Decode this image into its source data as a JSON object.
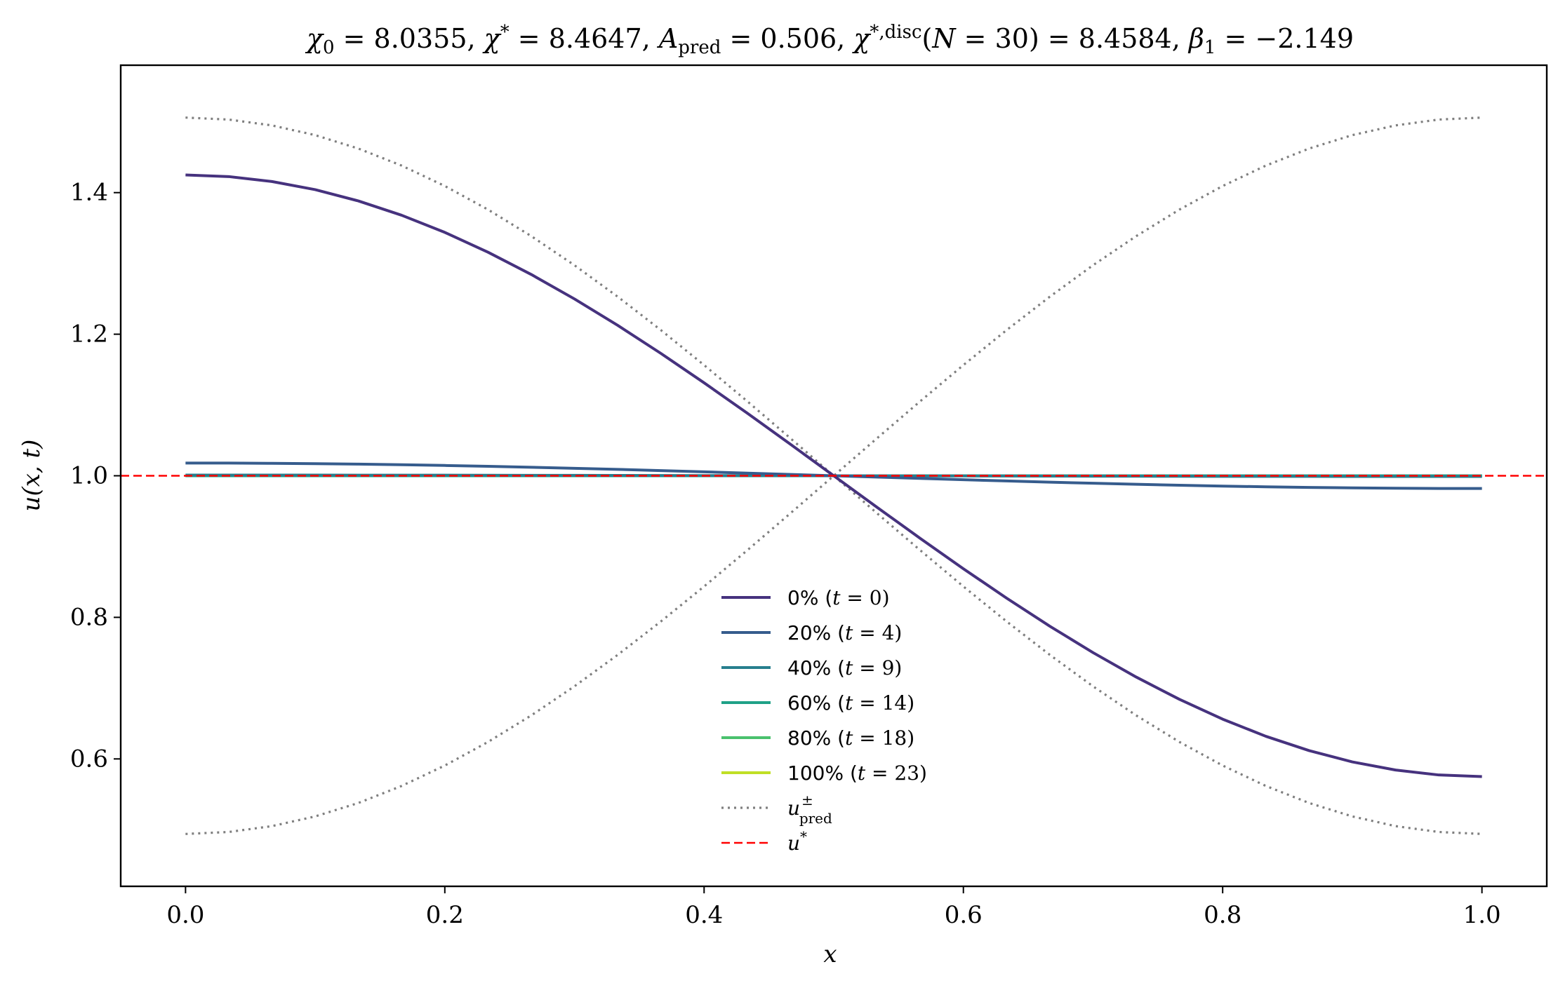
{
  "chart_data": {
    "type": "line",
    "title": "χ₀ = 8.0355,  χ* = 8.4647,  A_pred = 0.506,  χ*,disc(N = 30) = 8.4584,  β₁ = −2.149",
    "xlabel": "x",
    "ylabel": "u(x, t)",
    "xlim": [
      -0.05,
      1.05
    ],
    "ylim": [
      0.42,
      1.58
    ],
    "xticks": [
      0.0,
      0.2,
      0.4,
      0.6,
      0.8,
      1.0
    ],
    "yticks": [
      0.6,
      0.8,
      1.0,
      1.2,
      1.4
    ],
    "xtick_labels": [
      "0.0",
      "0.2",
      "0.4",
      "0.6",
      "0.8",
      "1.0"
    ],
    "ytick_labels": [
      "0.6",
      "0.8",
      "1.0",
      "1.2",
      "1.4"
    ],
    "grid": false,
    "legend_position": "lower-center",
    "profile_model": {
      "form": "u(x) = 1 + A*cos(pi*x)",
      "n_points": 31,
      "x_range": [
        0,
        1
      ]
    },
    "series": [
      {
        "name": "0% (t = 0)",
        "label_main": "0% (",
        "label_var": "t",
        "label_rest": " = 0)",
        "amplitude": 0.425,
        "color": "#46327e",
        "style": "solid",
        "width": 4
      },
      {
        "name": "20% (t = 4)",
        "label_main": "20% (",
        "label_var": "t",
        "label_rest": " = 4)",
        "amplitude": 0.018,
        "color": "#365c8d",
        "style": "solid",
        "width": 4
      },
      {
        "name": "40% (t = 9)",
        "label_main": "40% (",
        "label_var": "t",
        "label_rest": " = 9)",
        "amplitude": 0.001,
        "color": "#277f8e",
        "style": "solid",
        "width": 4
      },
      {
        "name": "60% (t = 14)",
        "label_main": "60% (",
        "label_var": "t",
        "label_rest": " = 14)",
        "amplitude": 0.0,
        "color": "#1fa187",
        "style": "solid",
        "width": 4
      },
      {
        "name": "80% (t = 18)",
        "label_main": "80% (",
        "label_var": "t",
        "label_rest": " = 18)",
        "amplitude": 0.0,
        "color": "#4ac16d",
        "style": "solid",
        "width": 4
      },
      {
        "name": "100% (t = 23)",
        "label_main": "100% (",
        "label_var": "t",
        "label_rest": " = 23)",
        "amplitude": 0.0,
        "color": "#c0df25",
        "style": "solid",
        "width": 4
      },
      {
        "name": "u±pred",
        "amplitude": 0.506,
        "mirror": true,
        "color": "#7f7f7f",
        "style": "dotted",
        "width": 3.2
      },
      {
        "name": "u*",
        "constant": 1.0,
        "color": "#ff0000",
        "style": "dashed",
        "width": 2.4
      }
    ]
  }
}
